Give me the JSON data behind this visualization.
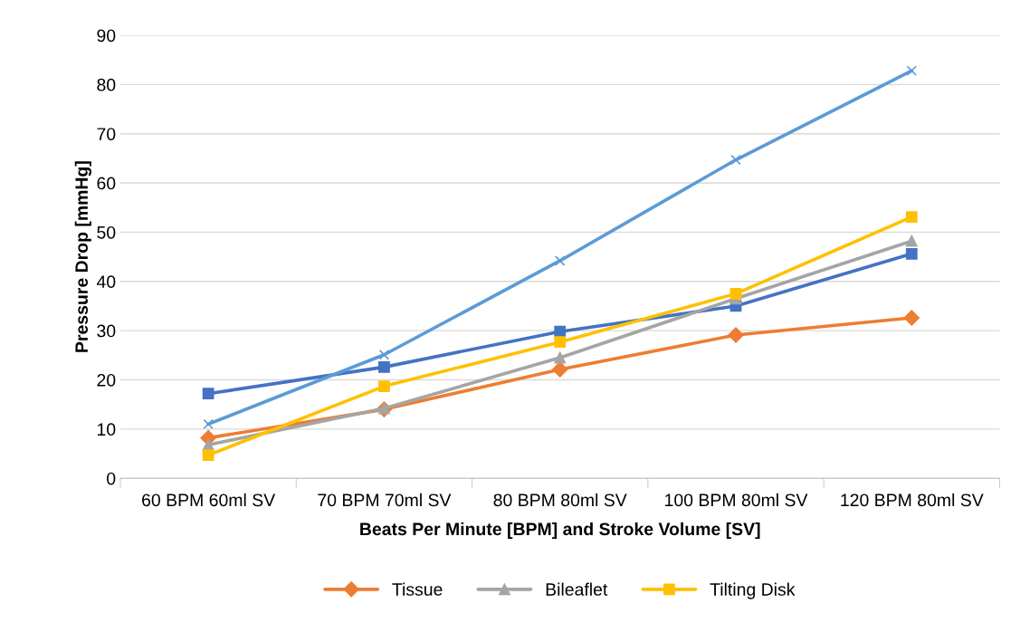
{
  "chart_data": {
    "type": "line",
    "xlabel": "Beats Per Minute [BPM] and Stroke Volume [SV]",
    "ylabel": "Pressure Drop [mmHg]",
    "categories": [
      "60 BPM 60ml SV",
      "70 BPM 70ml SV",
      "80 BPM 80ml SV",
      "100 BPM 80ml SV",
      "120 BPM 80ml SV"
    ],
    "series": [
      {
        "color": "#4472c4",
        "marker": "square",
        "values": [
          17.2,
          22.6,
          29.8,
          35.0,
          45.6
        ]
      },
      {
        "name": "Tissue",
        "color": "#ed7d31",
        "marker": "diamond",
        "values": [
          8.2,
          14.0,
          22.1,
          29.1,
          32.6
        ]
      },
      {
        "name": "Bileaflet",
        "color": "#a5a5a5",
        "marker": "triangle",
        "values": [
          6.8,
          14.2,
          24.5,
          36.5,
          48.2
        ]
      },
      {
        "name": "Tilting Disk",
        "color": "#ffc000",
        "marker": "square",
        "values": [
          4.7,
          18.7,
          27.7,
          37.5,
          53.1
        ]
      },
      {
        "color": "#5b9bd5",
        "marker": "cross",
        "values": [
          11.0,
          25.1,
          44.2,
          64.7,
          82.8
        ]
      }
    ],
    "ylim": [
      0,
      90
    ],
    "yticks": [
      0,
      10,
      20,
      30,
      40,
      50,
      60,
      70,
      80,
      90
    ],
    "grid": "y",
    "legend": "bottom",
    "line_style": "solid"
  }
}
